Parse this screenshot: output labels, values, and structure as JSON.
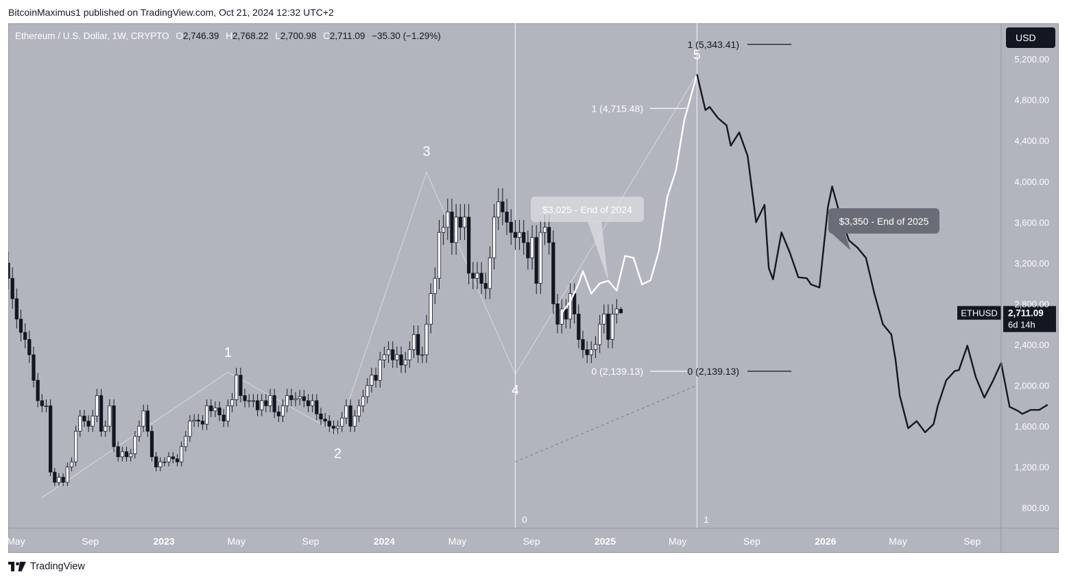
{
  "header": {
    "published": "BitcoinMaximus1 published on TradingView.com, Oct 21, 2024 12:32 UTC+2"
  },
  "symbol": {
    "name": "Ethereum / U.S. Dollar, 1W, CRYPTO",
    "o_label": "O",
    "o": "2,746.39",
    "h_label": "H",
    "h": "2,768.22",
    "l_label": "L",
    "l": "2,700.98",
    "c_label": "C",
    "c": "2,711.09",
    "change": "−35.30 (−1.29%)"
  },
  "currency": "USD",
  "brand": "TradingView",
  "colors": {
    "background": "#b2b5be",
    "candle_up": "#ffffff",
    "candle_down": "#131722",
    "projection_2024": "#ffffff",
    "projection_2025": "#131722"
  },
  "chart_data": {
    "type": "candlestick",
    "ylim": [
      600,
      5550
    ],
    "y_ticks": [
      {
        "value": 800,
        "label": "800.00"
      },
      {
        "value": 1200,
        "label": "1,200.00"
      },
      {
        "value": 1600,
        "label": "1,600.00"
      },
      {
        "value": 2000,
        "label": "2,000.00"
      },
      {
        "value": 2400,
        "label": "2,400.00"
      },
      {
        "value": 2800,
        "label": "2,800.00"
      },
      {
        "value": 3200,
        "label": "3,200.00"
      },
      {
        "value": 3600,
        "label": "3,600.00"
      },
      {
        "value": 4000,
        "label": "4,000.00"
      },
      {
        "value": 4400,
        "label": "4,400.00"
      },
      {
        "value": 4800,
        "label": "4,800.00"
      },
      {
        "value": 5200,
        "label": "5,200.00"
      }
    ],
    "x_range": [
      "2022-04-18",
      "2026-10-19"
    ],
    "x_ticks": [
      {
        "date": "2022-05-01",
        "label": "May",
        "bold": false
      },
      {
        "date": "2022-09-01",
        "label": "Sep",
        "bold": false
      },
      {
        "date": "2023-01-01",
        "label": "2023",
        "bold": true
      },
      {
        "date": "2023-05-01",
        "label": "May",
        "bold": false
      },
      {
        "date": "2023-09-01",
        "label": "Sep",
        "bold": false
      },
      {
        "date": "2024-01-01",
        "label": "2024",
        "bold": true
      },
      {
        "date": "2024-05-01",
        "label": "May",
        "bold": false
      },
      {
        "date": "2024-09-01",
        "label": "Sep",
        "bold": false
      },
      {
        "date": "2025-01-01",
        "label": "2025",
        "bold": true
      },
      {
        "date": "2025-05-01",
        "label": "May",
        "bold": false
      },
      {
        "date": "2025-09-01",
        "label": "Sep",
        "bold": false
      },
      {
        "date": "2026-01-01",
        "label": "2026",
        "bold": true
      },
      {
        "date": "2026-05-01",
        "label": "May",
        "bold": false
      },
      {
        "date": "2026-09-01",
        "label": "Sep",
        "bold": false
      }
    ],
    "candles": {
      "first_week": "2022-04-18",
      "interval_days": 7,
      "closes": [
        3050,
        2850,
        2650,
        2520,
        2450,
        2300,
        2050,
        1850,
        1800,
        1800,
        1150,
        1050,
        1100,
        1050,
        1200,
        1250,
        1550,
        1700,
        1650,
        1600,
        1700,
        1900,
        1550,
        1600,
        1800,
        1400,
        1300,
        1350,
        1300,
        1330,
        1500,
        1600,
        1750,
        1550,
        1300,
        1200,
        1250,
        1250,
        1300,
        1280,
        1250,
        1400,
        1500,
        1650,
        1660,
        1650,
        1620,
        1800,
        1750,
        1780,
        1710,
        1650,
        1800,
        1860,
        2100,
        1900,
        1850,
        1850,
        1850,
        1760,
        1850,
        1800,
        1900,
        1740,
        1700,
        1800,
        1900,
        1860,
        1870,
        1890,
        1850,
        1800,
        1850,
        1720,
        1670,
        1650,
        1600,
        1580,
        1600,
        1680,
        1800,
        1600,
        1700,
        1800,
        1890,
        2000,
        2100,
        2050,
        2250,
        2300,
        2350,
        2250,
        2300,
        2200,
        2250,
        2350,
        2500,
        2300,
        2300,
        2600,
        2900,
        3050,
        3500,
        3550,
        3700,
        3400,
        3650,
        3550,
        3650,
        3100,
        3050,
        3100,
        3000,
        2950,
        3250,
        3650,
        3800,
        3700,
        3600,
        3500,
        3450,
        3500,
        3400,
        3250,
        3450,
        3000,
        3500,
        3550,
        3400,
        2800,
        2600,
        2750,
        2650,
        2900,
        2700,
        2450,
        2350,
        2300,
        2350,
        2400,
        2600,
        2700,
        2450,
        2700,
        2750,
        2711
      ],
      "open_first": 3200,
      "last_open": 2746.39,
      "last_high": 2768.22,
      "last_low": 2700.98
    },
    "projection_2024": {
      "label": "$3,025 - End of 2024",
      "points": [
        {
          "date": "2024-10-21",
          "value": 2711
        },
        {
          "date": "2024-11-04",
          "value": 2820
        },
        {
          "date": "2024-11-18",
          "value": 3000
        },
        {
          "date": "2024-11-25",
          "value": 3120
        },
        {
          "date": "2024-12-09",
          "value": 2900
        },
        {
          "date": "2024-12-23",
          "value": 3000
        },
        {
          "date": "2025-01-06",
          "value": 3025
        },
        {
          "date": "2025-01-20",
          "value": 2930
        },
        {
          "date": "2025-02-03",
          "value": 3270
        },
        {
          "date": "2025-02-17",
          "value": 3250
        },
        {
          "date": "2025-03-03",
          "value": 2990
        },
        {
          "date": "2025-03-17",
          "value": 3030
        },
        {
          "date": "2025-03-31",
          "value": 3320
        },
        {
          "date": "2025-04-14",
          "value": 3850
        },
        {
          "date": "2025-04-28",
          "value": 4100
        },
        {
          "date": "2025-05-12",
          "value": 4600
        },
        {
          "date": "2025-06-02",
          "value": 5050
        }
      ]
    },
    "projection_2025": {
      "label": "$3,350 - End of 2025",
      "points": [
        {
          "date": "2025-06-02",
          "value": 5050
        },
        {
          "date": "2025-06-16",
          "value": 4700
        },
        {
          "date": "2025-06-23",
          "value": 4730
        },
        {
          "date": "2025-07-07",
          "value": 4620
        },
        {
          "date": "2025-07-21",
          "value": 4550
        },
        {
          "date": "2025-07-28",
          "value": 4350
        },
        {
          "date": "2025-08-11",
          "value": 4480
        },
        {
          "date": "2025-08-25",
          "value": 4250
        },
        {
          "date": "2025-09-08",
          "value": 3600
        },
        {
          "date": "2025-09-22",
          "value": 3770
        },
        {
          "date": "2025-09-29",
          "value": 3150
        },
        {
          "date": "2025-10-06",
          "value": 3040
        },
        {
          "date": "2025-10-20",
          "value": 3500
        },
        {
          "date": "2025-11-03",
          "value": 3300
        },
        {
          "date": "2025-11-17",
          "value": 3060
        },
        {
          "date": "2025-12-01",
          "value": 3050
        },
        {
          "date": "2025-12-08",
          "value": 2990
        },
        {
          "date": "2025-12-22",
          "value": 2960
        },
        {
          "date": "2026-01-05",
          "value": 3750
        },
        {
          "date": "2026-01-12",
          "value": 3950
        },
        {
          "date": "2026-01-26",
          "value": 3650
        },
        {
          "date": "2026-02-09",
          "value": 3420
        },
        {
          "date": "2026-02-23",
          "value": 3350
        },
        {
          "date": "2026-03-09",
          "value": 3250
        },
        {
          "date": "2026-03-23",
          "value": 2900
        },
        {
          "date": "2026-04-06",
          "value": 2600
        },
        {
          "date": "2026-04-20",
          "value": 2500
        },
        {
          "date": "2026-04-27",
          "value": 2250
        },
        {
          "date": "2026-05-04",
          "value": 1900
        },
        {
          "date": "2026-05-18",
          "value": 1580
        },
        {
          "date": "2026-06-01",
          "value": 1650
        },
        {
          "date": "2026-06-15",
          "value": 1540
        },
        {
          "date": "2026-06-29",
          "value": 1620
        },
        {
          "date": "2026-07-06",
          "value": 1800
        },
        {
          "date": "2026-07-20",
          "value": 2050
        },
        {
          "date": "2026-08-03",
          "value": 2140
        },
        {
          "date": "2026-08-10",
          "value": 2150
        },
        {
          "date": "2026-08-24",
          "value": 2390
        },
        {
          "date": "2026-09-07",
          "value": 2080
        },
        {
          "date": "2026-09-21",
          "value": 1880
        },
        {
          "date": "2026-10-05",
          "value": 2040
        },
        {
          "date": "2026-10-19",
          "value": 2220
        },
        {
          "date": "2026-11-02",
          "value": 1790
        },
        {
          "date": "2026-11-16",
          "value": 1750
        },
        {
          "date": "2026-11-23",
          "value": 1720
        },
        {
          "date": "2026-12-07",
          "value": 1760
        },
        {
          "date": "2026-12-21",
          "value": 1760
        },
        {
          "date": "2027-01-04",
          "value": 1810
        }
      ]
    },
    "waves": [
      {
        "label": "1",
        "date": "2023-04-17",
        "value": 2130
      },
      {
        "label": "2",
        "date": "2023-10-16",
        "value": 1530
      },
      {
        "label": "3",
        "date": "2024-03-11",
        "value": 4090
      },
      {
        "label": "4",
        "date": "2024-08-05",
        "value": 2110
      },
      {
        "label": "5",
        "date": "2025-06-02",
        "value": 5050
      }
    ],
    "wave_start": {
      "date": "2022-06-13",
      "value": 900
    },
    "fib_levels": [
      {
        "label": "1 (5,343.41)",
        "value": 5343.41
      },
      {
        "label": "1 (4,715.48)",
        "value": 4715.48
      },
      {
        "label": "0 (2,139.13)",
        "value": 2139.13
      },
      {
        "label": "0 (2,139.13)",
        "value": 2139.13
      }
    ],
    "time_fib": [
      {
        "label": "0",
        "date": "2024-08-05"
      },
      {
        "label": "1",
        "date": "2025-06-02"
      }
    ],
    "last_price": {
      "label": "ETHUSD",
      "value": "2,711.09",
      "countdown": "6d 14h",
      "price": 2711.09
    }
  }
}
